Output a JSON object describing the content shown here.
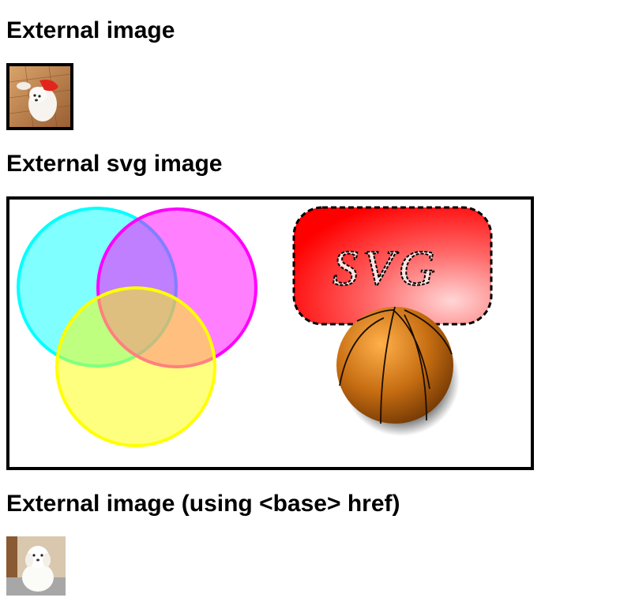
{
  "headings": {
    "external_image": "External image",
    "external_svg_image": "External svg image",
    "external_image_base": "External image (using <base> href)"
  },
  "svg_image": {
    "label_text": "SVG"
  }
}
